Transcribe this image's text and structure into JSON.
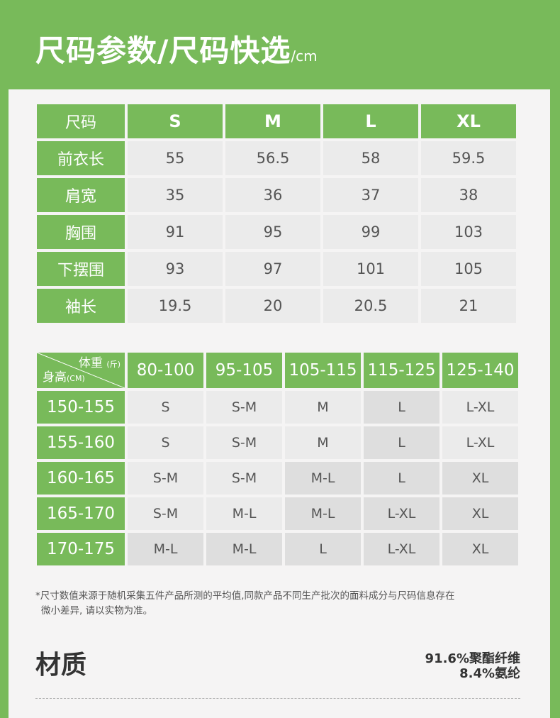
{
  "header": {
    "title": "尺码参数/尺码快选",
    "unit": "/cm"
  },
  "size_table": {
    "corner": "尺码",
    "sizes": [
      "S",
      "M",
      "L",
      "XL"
    ],
    "rows": [
      {
        "label": "前衣长",
        "values": [
          "55",
          "56.5",
          "58",
          "59.5"
        ]
      },
      {
        "label": "肩宽",
        "values": [
          "35",
          "36",
          "37",
          "38"
        ]
      },
      {
        "label": "胸围",
        "values": [
          "91",
          "95",
          "99",
          "103"
        ]
      },
      {
        "label": "下摆围",
        "values": [
          "93",
          "97",
          "101",
          "105"
        ]
      },
      {
        "label": "袖长",
        "values": [
          "19.5",
          "20",
          "20.5",
          "21"
        ]
      }
    ]
  },
  "quick_table": {
    "weight_label": "体重",
    "weight_unit": "(斤)",
    "height_label": "身高",
    "height_unit": "(CM)",
    "weights": [
      "80-100",
      "95-105",
      "105-115",
      "115-125",
      "125-140"
    ],
    "rows": [
      {
        "height": "150-155",
        "values": [
          "S",
          "S-M",
          "M",
          "L",
          "L-XL"
        ]
      },
      {
        "height": "155-160",
        "values": [
          "S",
          "S-M",
          "M",
          "L",
          "L-XL"
        ]
      },
      {
        "height": "160-165",
        "values": [
          "S-M",
          "S-M",
          "M-L",
          "L",
          "XL"
        ]
      },
      {
        "height": "165-170",
        "values": [
          "S-M",
          "M-L",
          "M-L",
          "L-XL",
          "XL"
        ]
      },
      {
        "height": "170-175",
        "values": [
          "M-L",
          "M-L",
          "L",
          "L-XL",
          "XL"
        ]
      }
    ]
  },
  "note": {
    "line1": "*尺寸数值来源于随机采集五件产品所测的平均值,同款产品不同生产批次的面料成分与尺码信息存在",
    "line2": "微小差异, 请以实物为准。"
  },
  "material": {
    "title": "材质",
    "line1": "91.6%聚酯纤维",
    "line2": "8.4%氨纶"
  },
  "colors": {
    "brand_green": "#78ba5a",
    "cell_gray": "#ebebeb",
    "cell_gray_dark": "#dedede",
    "background": "#f5f4f4"
  }
}
